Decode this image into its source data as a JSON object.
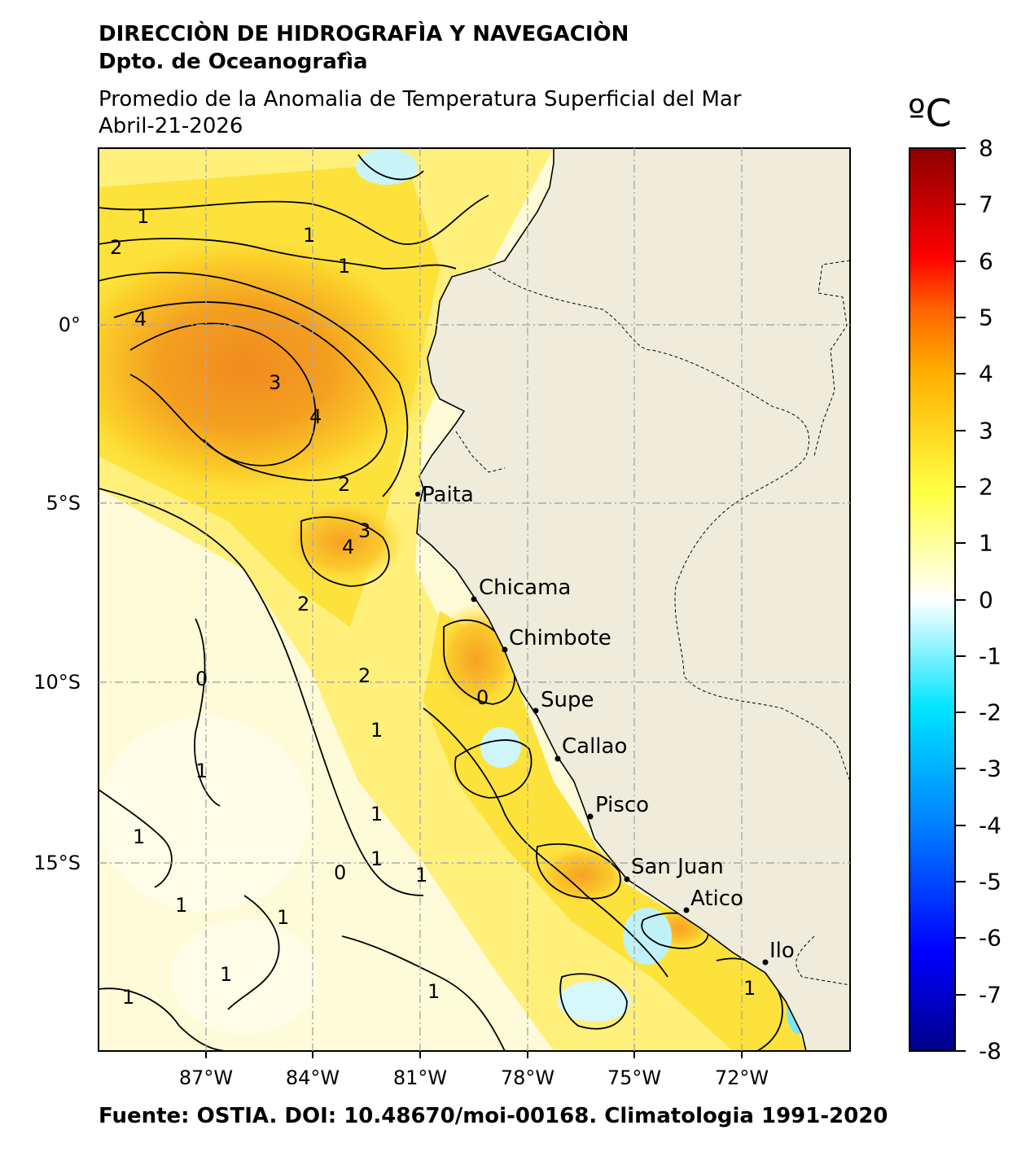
{
  "header": {
    "institution": "DIRECCIÒN DE HIDROGRAFÌA Y NAVEGACIÒN",
    "department": "Dpto. de Oceanografìa",
    "product": "Promedio de la Anomalia de Temperatura Superficial del Mar",
    "date": "Abril-21-2026"
  },
  "footer": {
    "source": "Fuente: OSTIA. DOI: 10.48670/moi-00168. Climatologia 1991-2020"
  },
  "colorbar": {
    "unit": "ºC",
    "range": [
      -8,
      8
    ],
    "ticks": [
      "8",
      "7",
      "6",
      "5",
      "4",
      "3",
      "2",
      "1",
      "0",
      "-1",
      "-2",
      "-3",
      "-4",
      "-5",
      "-6",
      "-7",
      "-8"
    ],
    "colors": [
      "#00008b",
      "#0000ff",
      "#0080ff",
      "#00e5ff",
      "#ffffff",
      "#ffff66",
      "#ffcc00",
      "#ff6600",
      "#ff0000",
      "#8b0000"
    ]
  },
  "map": {
    "lon_range": [
      -90,
      -69
    ],
    "lat_range": [
      -20,
      5
    ],
    "x_ticks": [
      "87°W",
      "84°W",
      "81°W",
      "78°W",
      "75°W",
      "72°W"
    ],
    "y_ticks": [
      "0°",
      "5°S",
      "10°S",
      "15°S"
    ],
    "land_color": "#efecdc",
    "cities": [
      {
        "name": "Paita"
      },
      {
        "name": "Chicama"
      },
      {
        "name": "Chimbote"
      },
      {
        "name": "Supe"
      },
      {
        "name": "Callao"
      },
      {
        "name": "Pisco"
      },
      {
        "name": "San Juan"
      },
      {
        "name": "Atico"
      },
      {
        "name": "Ilo"
      }
    ],
    "contour_labels": [
      "1",
      "2",
      "3",
      "4",
      "0"
    ]
  }
}
